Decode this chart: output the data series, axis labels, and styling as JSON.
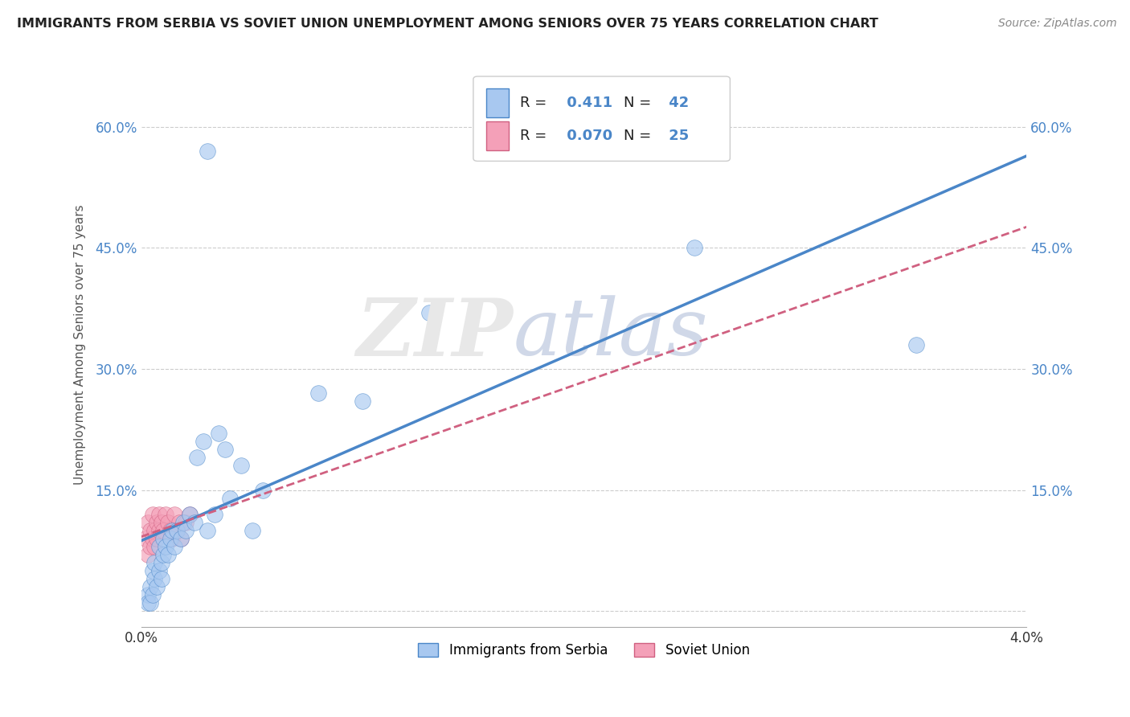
{
  "title": "IMMIGRANTS FROM SERBIA VS SOVIET UNION UNEMPLOYMENT AMONG SENIORS OVER 75 YEARS CORRELATION CHART",
  "source": "Source: ZipAtlas.com",
  "ylabel": "Unemployment Among Seniors over 75 years",
  "xlim": [
    0.0,
    0.04
  ],
  "ylim": [
    -0.02,
    0.68
  ],
  "yticks": [
    0.0,
    0.15,
    0.3,
    0.45,
    0.6
  ],
  "ytick_labels": [
    "",
    "15.0%",
    "30.0%",
    "45.0%",
    "60.0%"
  ],
  "xticks": [
    0.0,
    0.04
  ],
  "xtick_labels": [
    "0.0%",
    "4.0%"
  ],
  "serbia_color": "#A8C8F0",
  "soviet_color": "#F4A0B8",
  "serbia_line_color": "#4A86C8",
  "soviet_line_color": "#D06080",
  "serbia_R": 0.411,
  "serbia_N": 42,
  "soviet_R": 0.07,
  "soviet_N": 25,
  "legend_label_serbia": "Immigrants from Serbia",
  "legend_label_soviet": "Soviet Union",
  "background_color": "#FFFFFF",
  "grid_color": "#CCCCCC",
  "serbia_x": [
    0.0003,
    0.0003,
    0.0004,
    0.0004,
    0.0005,
    0.0005,
    0.0006,
    0.0006,
    0.0007,
    0.0008,
    0.0008,
    0.0009,
    0.0009,
    0.001,
    0.001,
    0.0011,
    0.0012,
    0.0013,
    0.0014,
    0.0015,
    0.0016,
    0.0018,
    0.0019,
    0.002,
    0.0022,
    0.0024,
    0.0025,
    0.0028,
    0.003,
    0.0033,
    0.0035,
    0.0038,
    0.004,
    0.0045,
    0.005,
    0.0055,
    0.008,
    0.01,
    0.013,
    0.025,
    0.003,
    0.035
  ],
  "serbia_y": [
    0.02,
    0.01,
    0.03,
    0.01,
    0.05,
    0.02,
    0.04,
    0.06,
    0.03,
    0.05,
    0.08,
    0.06,
    0.04,
    0.07,
    0.09,
    0.08,
    0.07,
    0.09,
    0.1,
    0.08,
    0.1,
    0.09,
    0.11,
    0.1,
    0.12,
    0.11,
    0.19,
    0.21,
    0.1,
    0.12,
    0.22,
    0.2,
    0.14,
    0.18,
    0.1,
    0.15,
    0.27,
    0.26,
    0.37,
    0.45,
    0.57,
    0.33
  ],
  "soviet_x": [
    0.0002,
    0.0003,
    0.0003,
    0.0004,
    0.0004,
    0.0005,
    0.0005,
    0.0006,
    0.0006,
    0.0007,
    0.0007,
    0.0008,
    0.0008,
    0.0009,
    0.001,
    0.0011,
    0.0012,
    0.0013,
    0.0014,
    0.0015,
    0.0016,
    0.0017,
    0.0018,
    0.002,
    0.0022
  ],
  "soviet_y": [
    0.09,
    0.07,
    0.11,
    0.08,
    0.1,
    0.09,
    0.12,
    0.08,
    0.1,
    0.11,
    0.09,
    0.1,
    0.12,
    0.11,
    0.1,
    0.12,
    0.11,
    0.1,
    0.09,
    0.12,
    0.1,
    0.11,
    0.09,
    0.11,
    0.12
  ]
}
